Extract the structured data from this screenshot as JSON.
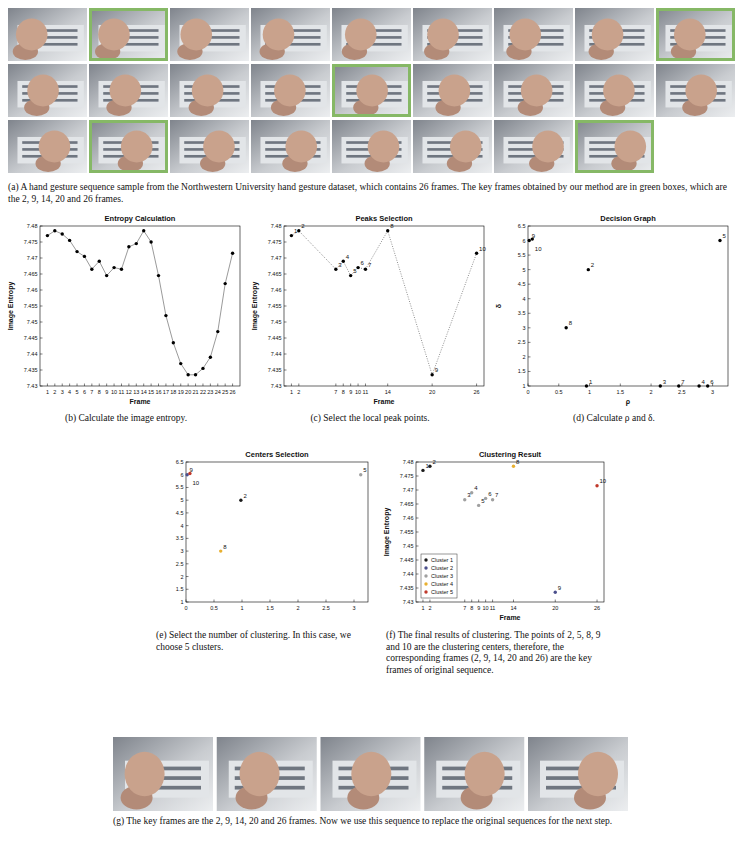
{
  "figure_a": {
    "frame_count": 26,
    "key_frames": [
      2,
      9,
      14,
      20,
      26
    ],
    "caption": "(a) A hand gesture sequence sample from the Northwestern University hand gesture dataset, which contains 26 frames. The key frames obtained by our method are in green boxes, which are the 2, 9, 14, 20 and 26 frames."
  },
  "chart_data": [
    {
      "type": "line",
      "title": "Entropy Calculation",
      "x_label": "Frame",
      "y_label": "Image Entropy",
      "x": [
        1,
        2,
        3,
        4,
        5,
        6,
        7,
        8,
        9,
        10,
        11,
        12,
        13,
        14,
        15,
        16,
        17,
        18,
        19,
        20,
        21,
        22,
        23,
        24,
        25,
        26
      ],
      "values": [
        7.477,
        7.4785,
        7.4775,
        7.4755,
        7.472,
        7.4705,
        7.4665,
        7.469,
        7.4645,
        7.467,
        7.4665,
        7.4735,
        7.4745,
        7.4785,
        7.475,
        7.4645,
        7.452,
        7.4435,
        7.437,
        7.4335,
        7.4335,
        7.4355,
        7.439,
        7.447,
        7.462,
        7.4715
      ],
      "color": "#000000",
      "marker": "dot",
      "line_style": "solid",
      "xlim": [
        0,
        27
      ],
      "ylim": [
        7.43,
        7.48
      ],
      "xticks": [
        1,
        2,
        3,
        4,
        5,
        6,
        7,
        8,
        9,
        10,
        11,
        12,
        13,
        14,
        15,
        16,
        17,
        18,
        19,
        20,
        21,
        22,
        23,
        24,
        25,
        26
      ],
      "yticks": [
        7.43,
        7.435,
        7.44,
        7.445,
        7.45,
        7.455,
        7.46,
        7.465,
        7.47,
        7.475,
        7.48
      ],
      "caption": "(b) Calculate the image entropy."
    },
    {
      "type": "line",
      "title": "Peaks Selection",
      "x_label": "Frame",
      "y_label": "Image Entropy",
      "x": [
        1,
        2,
        7,
        8,
        9,
        10,
        11,
        14,
        20,
        26
      ],
      "values": [
        7.477,
        7.4785,
        7.4665,
        7.469,
        7.4645,
        7.467,
        7.4665,
        7.4785,
        7.4335,
        7.4715
      ],
      "labels": [
        "1",
        "2",
        "3",
        "4",
        "5",
        "6",
        "7",
        "8",
        "9",
        "10"
      ],
      "color": "#000000",
      "marker": "dot",
      "line_style": "dotted",
      "xlim": [
        0,
        27
      ],
      "ylim": [
        7.43,
        7.48
      ],
      "xticks": [
        1,
        2,
        7,
        8,
        9,
        10,
        11,
        14,
        20,
        26
      ],
      "yticks": [
        7.43,
        7.435,
        7.44,
        7.445,
        7.45,
        7.455,
        7.46,
        7.465,
        7.47,
        7.475,
        7.48
      ],
      "caption": "(c) Select the local peak points."
    },
    {
      "type": "scatter",
      "title": "Decision Graph",
      "x_label": "ρ",
      "y_label": "δ",
      "x": [
        0.95,
        0.98,
        2.15,
        2.78,
        3.12,
        2.92,
        2.45,
        0.62,
        0.02,
        0.07
      ],
      "values": [
        1.0,
        5.0,
        1.0,
        1.0,
        6.0,
        1.0,
        1.0,
        3.0,
        6.0,
        6.05
      ],
      "labels": [
        "1",
        "2",
        "3",
        "4",
        "5",
        "6",
        "7",
        "8",
        "9",
        "10"
      ],
      "color": "#000000",
      "marker": "dot",
      "xlim": [
        0,
        3.25
      ],
      "ylim": [
        1,
        6.5
      ],
      "xticks": [
        0,
        0.5,
        1,
        1.5,
        2,
        2.5,
        3
      ],
      "yticks": [
        1,
        1.5,
        2,
        2.5,
        3,
        3.5,
        4,
        4.5,
        5,
        5.5,
        6,
        6.5
      ],
      "caption": "(d) Calculate ρ and δ."
    },
    {
      "type": "scatter",
      "title": "Centers Selection",
      "x": [
        0.98,
        3.12,
        0.62,
        0.02,
        0.07
      ],
      "values": [
        5.0,
        6.0,
        3.0,
        6.0,
        6.05
      ],
      "labels": [
        "2",
        "5",
        "8",
        "9",
        "10"
      ],
      "colors": [
        "#1b1b1b",
        "#a0a0a0",
        "#e8b030",
        "#4b4f8c",
        "#c0392b"
      ],
      "marker": "dot",
      "xlim": [
        0,
        3.25
      ],
      "ylim": [
        1,
        6.5
      ],
      "xticks": [
        0,
        0.5,
        1,
        1.5,
        2,
        2.5,
        3
      ],
      "yticks": [
        1,
        1.5,
        2,
        2.5,
        3,
        3.5,
        4,
        4.5,
        5,
        5.5,
        6,
        6.5
      ],
      "caption": "(e) Select the number of clustering. In this case, we choose 5 clusters."
    },
    {
      "type": "scatter",
      "title": "Clustering Result",
      "x_label": "Frame",
      "y_label": "Image Entropy",
      "series": [
        {
          "name": "Cluster 1",
          "color": "#1b1b1b",
          "x": [
            1,
            2
          ],
          "values": [
            7.477,
            7.4785
          ],
          "labels": [
            "1",
            "2"
          ]
        },
        {
          "name": "Cluster 2",
          "color": "#4b4f8c",
          "x": [
            20
          ],
          "values": [
            7.4335
          ],
          "labels": [
            "9"
          ]
        },
        {
          "name": "Cluster 3",
          "color": "#a0a0a0",
          "x": [
            7,
            8,
            9,
            10,
            11
          ],
          "values": [
            7.4665,
            7.469,
            7.4645,
            7.467,
            7.4665
          ],
          "labels": [
            "3",
            "4",
            "5",
            "6",
            "7"
          ]
        },
        {
          "name": "Cluster 4",
          "color": "#e8b030",
          "x": [
            14
          ],
          "values": [
            7.4785
          ],
          "labels": [
            "8"
          ]
        },
        {
          "name": "Cluster 5",
          "color": "#c0392b",
          "x": [
            26
          ],
          "values": [
            7.4715
          ],
          "labels": [
            "10"
          ]
        }
      ],
      "marker": "dot",
      "legend": "lower left",
      "xlim": [
        0,
        27
      ],
      "ylim": [
        7.43,
        7.48
      ],
      "xticks": [
        1,
        2,
        7,
        8,
        9,
        10,
        11,
        14,
        20,
        26
      ],
      "yticks": [
        7.43,
        7.435,
        7.44,
        7.445,
        7.45,
        7.455,
        7.46,
        7.465,
        7.47,
        7.475,
        7.48
      ],
      "caption": "(f) The final results of clustering. The points of 2, 5, 8, 9 and 10 are the clustering centers, therefore, the corresponding frames (2, 9, 14, 20 and 26) are the key frames of original sequence."
    }
  ],
  "figure_g": {
    "key_frames": [
      2,
      9,
      14,
      20,
      26
    ],
    "caption": "(g) The key frames are the 2, 9, 14, 20 and 26 frames. Now we use this sequence to replace the original sequences for the next step."
  }
}
